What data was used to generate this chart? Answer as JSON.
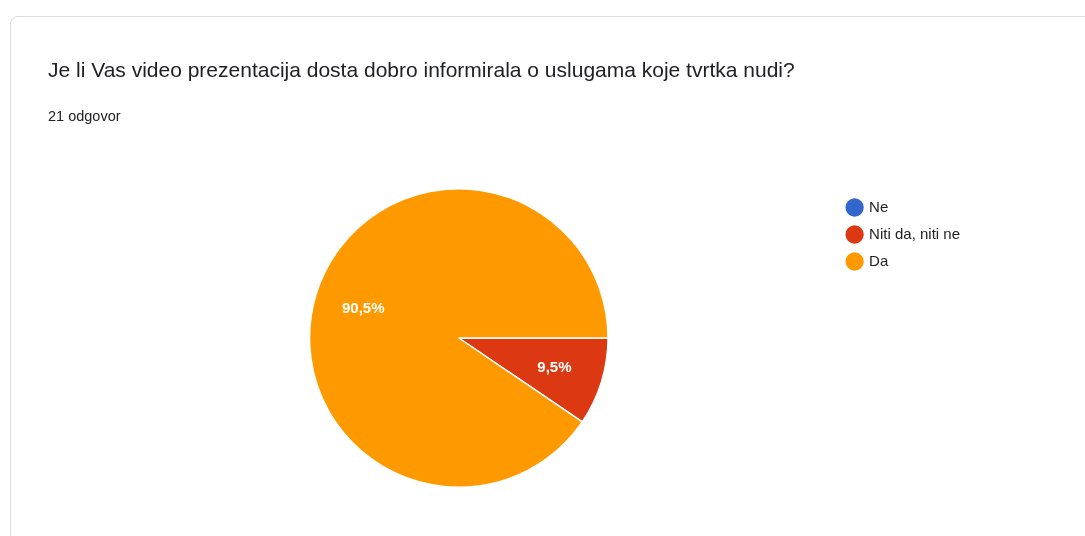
{
  "chart_data": {
    "type": "pie",
    "title": "Je li Vas video prezentacija dosta dobro informirala o uslugama koje tvrtka nudi?",
    "subtitle": "21 odgovor",
    "categories": [
      "Ne",
      "Niti da, niti ne",
      "Da"
    ],
    "values": [
      0,
      9.5,
      90.5
    ],
    "colors": [
      "#3366cc",
      "#dc3912",
      "#ff9900"
    ],
    "value_labels": [
      null,
      "9,5%",
      "90,5%"
    ],
    "legend": "top right"
  }
}
